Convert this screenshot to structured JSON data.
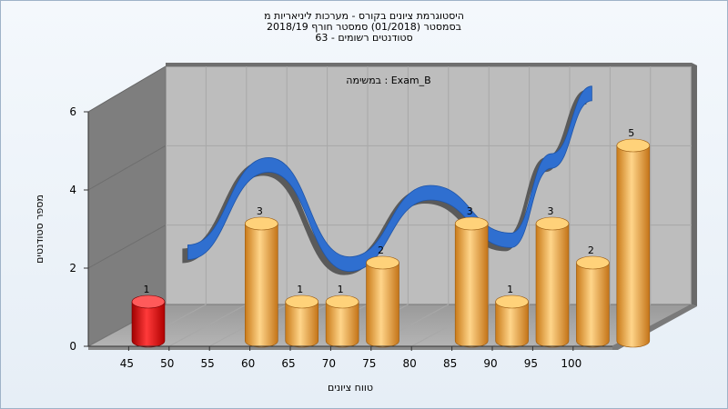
{
  "chart_data": {
    "type": "bar",
    "title_lines": [
      "היסטוגרמת ציונים בקורס - מערכות ליניאריות מ",
      "בסמסטר  (01/2018)  סמסטר חורף 2018/19",
      "סטודנטים רשומים - 63"
    ],
    "subtitle": "במשימה : Exam_B",
    "xlabel": "טווח ציונים",
    "ylabel": "מספר סטודנטים",
    "ylim": [
      0,
      6
    ],
    "y_ticks": [
      "0",
      "2",
      "4",
      "6"
    ],
    "x_ticks": [
      "45",
      "50",
      "55",
      "60",
      "65",
      "70",
      "75",
      "80",
      "85",
      "90",
      "95",
      "100"
    ],
    "categories": [
      "45-50",
      "55-60",
      "60-65",
      "65-70",
      "70-75",
      "80-85",
      "85-90",
      "90-95",
      "95-100",
      "100"
    ],
    "values": [
      1,
      3,
      1,
      1,
      2,
      3,
      1,
      3,
      2,
      5
    ],
    "data_labels": [
      "1",
      "3",
      "1",
      "1",
      "2",
      "3",
      "1",
      "3",
      "2",
      "5"
    ],
    "bar_colors": [
      "#e01010",
      "#e8a030",
      "#e8a030",
      "#e8a030",
      "#e8a030",
      "#e8a030",
      "#e8a030",
      "#e8a030",
      "#e8a030",
      "#e8a030"
    ],
    "trend_line": {
      "type": "line",
      "color": "#2f6fd0",
      "x": [
        50,
        60,
        70,
        80,
        90,
        95,
        100
      ],
      "values": [
        1.5,
        3.7,
        1.2,
        3.0,
        1.8,
        3.8,
        5.5
      ]
    },
    "grid": true,
    "style": "3d"
  }
}
